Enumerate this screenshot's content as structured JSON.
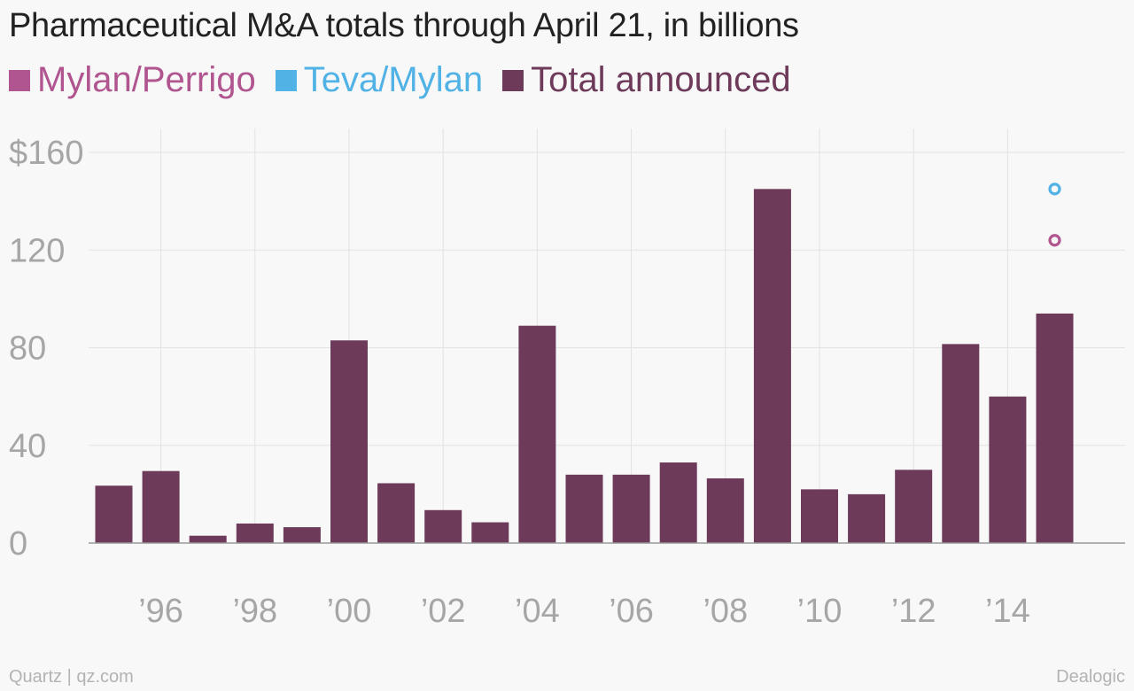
{
  "title": "Pharmaceutical M&A totals through April 21, in billions",
  "colors": {
    "mylan_perrigo": "#b0558f",
    "teva_mylan": "#51b2e5",
    "total": "#6d3a5a",
    "grid": "#e2e2e2",
    "axis_text": "#a6a6a6",
    "baseline": "#999999"
  },
  "footer": {
    "source_left": "Quartz | qz.com",
    "source_right": "Dealogic"
  },
  "chart_data": {
    "type": "bar",
    "title": "Pharmaceutical M&A totals through April 21, in billions",
    "xlabel": "",
    "ylabel": "",
    "ylim": [
      0,
      160
    ],
    "y_ticks": [
      {
        "value": 0,
        "label": "0"
      },
      {
        "value": 40,
        "label": "40"
      },
      {
        "value": 80,
        "label": "80"
      },
      {
        "value": 120,
        "label": "120"
      },
      {
        "value": 160,
        "label": "$160"
      }
    ],
    "x_ticks": [
      {
        "year": 1996,
        "label": "’96"
      },
      {
        "year": 1998,
        "label": "’98"
      },
      {
        "year": 2000,
        "label": "’00"
      },
      {
        "year": 2002,
        "label": "’02"
      },
      {
        "year": 2004,
        "label": "’04"
      },
      {
        "year": 2006,
        "label": "’06"
      },
      {
        "year": 2008,
        "label": "’08"
      },
      {
        "year": 2010,
        "label": "’10"
      },
      {
        "year": 2012,
        "label": "’12"
      },
      {
        "year": 2014,
        "label": "’14"
      }
    ],
    "grid": true,
    "legend_position": "top-left",
    "series": [
      {
        "name": "Mylan/Perrigo",
        "type": "point",
        "color": "#b0558f",
        "points": [
          {
            "x": 2015,
            "y": 124
          }
        ]
      },
      {
        "name": "Teva/Mylan",
        "type": "point",
        "color": "#51b2e5",
        "points": [
          {
            "x": 2015,
            "y": 145
          }
        ]
      },
      {
        "name": "Total announced",
        "type": "bar",
        "color": "#6d3a5a",
        "x": [
          1995,
          1996,
          1997,
          1998,
          1999,
          2000,
          2001,
          2002,
          2003,
          2004,
          2005,
          2006,
          2007,
          2008,
          2009,
          2010,
          2011,
          2012,
          2013,
          2014,
          2015
        ],
        "values": [
          23.5,
          29.5,
          3,
          8,
          6.5,
          83,
          24.5,
          13.5,
          8.5,
          89,
          28,
          28,
          33,
          26.5,
          145,
          22,
          20,
          30,
          81.5,
          60,
          94
        ]
      }
    ]
  }
}
